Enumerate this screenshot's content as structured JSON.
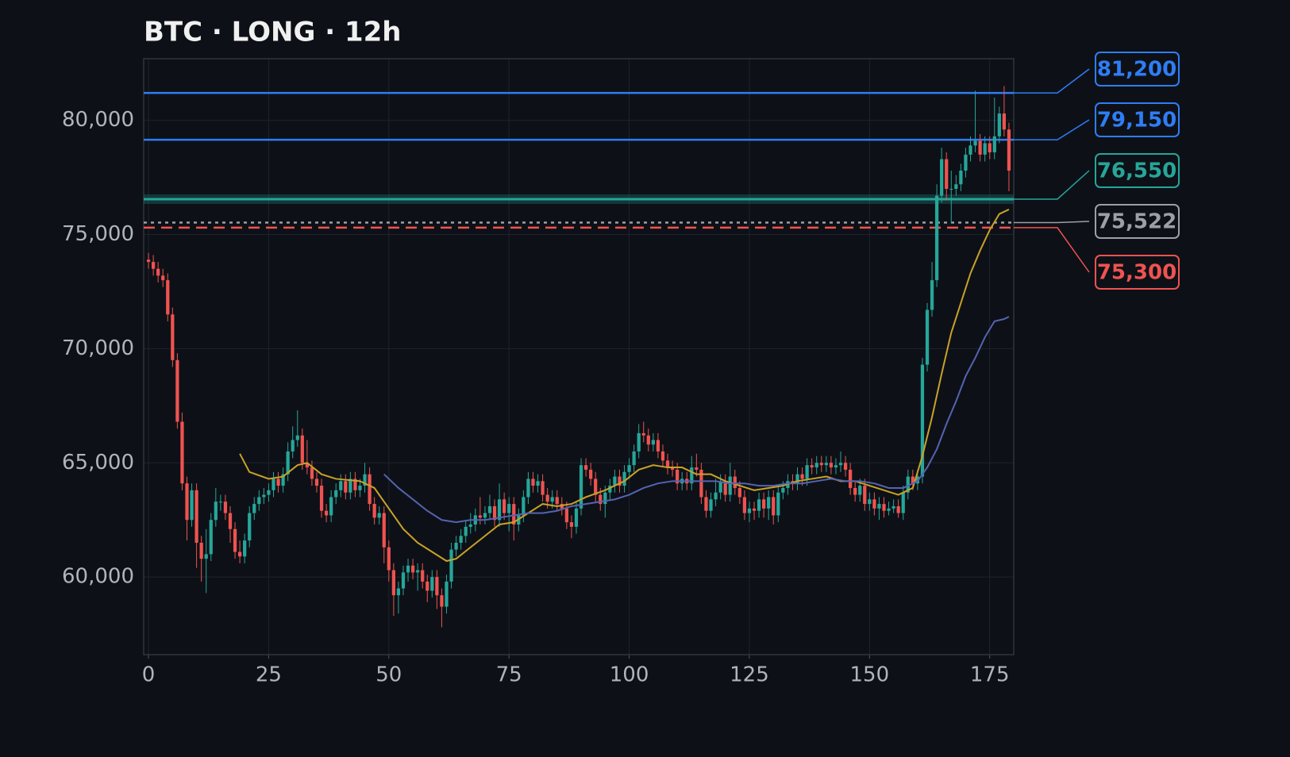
{
  "chart_data": {
    "type": "candlestick",
    "title": "BTC · LONG · 12h",
    "x": [
      0,
      1,
      2,
      3,
      4,
      5,
      6,
      7,
      8,
      9,
      10,
      11,
      12,
      13,
      14,
      15,
      16,
      17,
      18,
      19,
      20,
      21,
      22,
      23,
      24,
      25,
      26,
      27,
      28,
      29,
      30,
      31,
      32,
      33,
      34,
      35,
      36,
      37,
      38,
      39,
      40,
      41,
      42,
      43,
      44,
      45,
      46,
      47,
      48,
      49,
      50,
      51,
      52,
      53,
      54,
      55,
      56,
      57,
      58,
      59,
      60,
      61,
      62,
      63,
      64,
      65,
      66,
      67,
      68,
      69,
      70,
      71,
      72,
      73,
      74,
      75,
      76,
      77,
      78,
      79,
      80,
      81,
      82,
      83,
      84,
      85,
      86,
      87,
      88,
      89,
      90,
      91,
      92,
      93,
      94,
      95,
      96,
      97,
      98,
      99,
      100,
      101,
      102,
      103,
      104,
      105,
      106,
      107,
      108,
      109,
      110,
      111,
      112,
      113,
      114,
      115,
      116,
      117,
      118,
      119,
      120,
      121,
      122,
      123,
      124,
      125,
      126,
      127,
      128,
      129,
      130,
      131,
      132,
      133,
      134,
      135,
      136,
      137,
      138,
      139,
      140,
      141,
      142,
      143,
      144,
      145,
      146,
      147,
      148,
      149,
      150,
      151,
      152,
      153,
      154,
      155,
      156,
      157,
      158,
      159,
      160,
      161,
      162,
      163,
      164,
      165,
      166,
      167,
      168,
      169,
      170,
      171,
      172,
      173,
      174,
      175,
      176,
      177,
      178,
      179
    ],
    "open": [
      73900,
      73800,
      73500,
      73200,
      73000,
      71500,
      69500,
      66800,
      64100,
      62500,
      63800,
      61500,
      60800,
      61000,
      62500,
      63300,
      63300,
      62800,
      62100,
      61100,
      60900,
      61600,
      62800,
      63200,
      63500,
      63600,
      63800,
      64300,
      64000,
      64500,
      65500,
      66000,
      66200,
      65000,
      64800,
      64300,
      64000,
      62900,
      62700,
      63500,
      63800,
      64200,
      63700,
      64300,
      63800,
      64000,
      64500,
      63200,
      62600,
      62800,
      61300,
      60300,
      59200,
      59500,
      60200,
      60500,
      60200,
      60300,
      59800,
      59400,
      60000,
      59200,
      58700,
      59800,
      61200,
      61500,
      61800,
      62200,
      62300,
      62700,
      62600,
      62800,
      63100,
      62500,
      63400,
      62800,
      63200,
      62300,
      62700,
      63500,
      64300,
      64000,
      64200,
      63600,
      63300,
      63500,
      63200,
      63000,
      62400,
      62200,
      63000,
      64900,
      64700,
      64300,
      63600,
      63200,
      63700,
      64000,
      64400,
      64000,
      64600,
      64900,
      65500,
      66300,
      66200,
      65800,
      66000,
      65500,
      65100,
      64800,
      64700,
      64100,
      64300,
      64100,
      64800,
      64700,
      63500,
      62900,
      63400,
      63700,
      64200,
      63600,
      64400,
      63900,
      63500,
      62800,
      63000,
      62900,
      63400,
      63000,
      63500,
      62700,
      63700,
      63900,
      64200,
      64100,
      64500,
      64300,
      64900,
      64800,
      65000,
      64900,
      65000,
      64800,
      64900,
      65000,
      64700,
      63900,
      63600,
      64000,
      63200,
      63400,
      63000,
      63200,
      62900,
      63000,
      63100,
      62800,
      63700,
      64400,
      64100,
      64400,
      69300,
      71700,
      73000,
      76700,
      78300,
      77000,
      77000,
      77200,
      77800,
      78500,
      78900,
      79100,
      78500,
      79000,
      78600,
      79300,
      80300,
      79600
    ],
    "high": [
      74200,
      74100,
      73800,
      73500,
      73300,
      71800,
      69800,
      67200,
      64400,
      64100,
      64100,
      61800,
      62100,
      62800,
      63900,
      63600,
      63600,
      63100,
      62400,
      61600,
      61900,
      63100,
      63500,
      63800,
      63900,
      64100,
      64600,
      64600,
      64800,
      65900,
      66600,
      67300,
      66500,
      66000,
      65100,
      64600,
      64300,
      63200,
      63800,
      64100,
      64500,
      64500,
      64600,
      64600,
      64300,
      65000,
      64800,
      63500,
      63100,
      63100,
      61600,
      60600,
      59800,
      60500,
      60800,
      60800,
      60600,
      60600,
      60100,
      60300,
      60300,
      59500,
      60100,
      61500,
      61800,
      62100,
      62500,
      62800,
      63000,
      63500,
      63100,
      63600,
      63400,
      64100,
      63700,
      63500,
      63500,
      63000,
      63800,
      64600,
      64600,
      64500,
      64500,
      63900,
      63800,
      63800,
      63500,
      63300,
      62700,
      63300,
      65200,
      65200,
      65000,
      64600,
      63900,
      64000,
      64300,
      64700,
      64700,
      64900,
      65200,
      65800,
      66700,
      66800,
      66500,
      66300,
      66300,
      65800,
      65400,
      65100,
      65000,
      64600,
      64600,
      65300,
      65400,
      65000,
      63800,
      63700,
      64300,
      64500,
      64500,
      65000,
      64700,
      64200,
      63800,
      63300,
      63300,
      63700,
      63700,
      63800,
      63800,
      64000,
      64200,
      64500,
      64500,
      64800,
      64800,
      65200,
      65200,
      65300,
      65300,
      65300,
      65300,
      65200,
      65500,
      65300,
      65000,
      64200,
      64300,
      64300,
      63700,
      63700,
      63500,
      63500,
      63300,
      63400,
      63400,
      64000,
      64700,
      64700,
      64700,
      69600,
      72000,
      73800,
      77200,
      78800,
      78600,
      77800,
      77600,
      78100,
      78800,
      79300,
      81300,
      79400,
      79300,
      79300,
      81000,
      80600,
      81500,
      79900
    ],
    "low": [
      73500,
      73200,
      72900,
      72700,
      71200,
      69200,
      66500,
      63800,
      61600,
      62200,
      60400,
      59800,
      59300,
      60700,
      62200,
      62900,
      62500,
      61500,
      60800,
      60600,
      60600,
      61300,
      62500,
      62900,
      63200,
      63300,
      63500,
      63700,
      63700,
      64200,
      65200,
      65700,
      64700,
      64500,
      64000,
      63700,
      62600,
      62400,
      62400,
      63200,
      63500,
      63400,
      63400,
      63500,
      63500,
      63700,
      62900,
      62300,
      62300,
      60600,
      59800,
      58300,
      58400,
      59200,
      59800,
      59900,
      59400,
      59500,
      58900,
      59100,
      58600,
      57800,
      58400,
      59500,
      60900,
      61200,
      61500,
      61900,
      62000,
      62300,
      62300,
      62500,
      62200,
      62200,
      62500,
      62000,
      61600,
      62000,
      62400,
      63200,
      63700,
      63700,
      63300,
      63000,
      63000,
      62900,
      62700,
      62100,
      61700,
      61900,
      62700,
      64400,
      64000,
      63300,
      62900,
      62600,
      63400,
      63700,
      63700,
      63700,
      64300,
      64600,
      65200,
      65900,
      65500,
      65500,
      65200,
      64800,
      64500,
      64400,
      63800,
      63800,
      63800,
      63800,
      64400,
      63200,
      62600,
      62600,
      63100,
      63400,
      63300,
      63300,
      63600,
      63200,
      62500,
      62400,
      62500,
      62600,
      62600,
      62500,
      62300,
      62400,
      63400,
      63600,
      63800,
      63800,
      64000,
      64000,
      64500,
      64500,
      64600,
      64600,
      64500,
      64500,
      64600,
      64400,
      63600,
      63300,
      63300,
      62900,
      62900,
      62700,
      62500,
      62600,
      62700,
      62800,
      62600,
      62500,
      63400,
      63800,
      63800,
      64100,
      69000,
      71400,
      72700,
      76400,
      76500,
      75500,
      76700,
      76900,
      77500,
      78200,
      78600,
      78200,
      78200,
      78300,
      78300,
      79000,
      79300,
      76900
    ],
    "close": [
      73800,
      73500,
      73200,
      73000,
      71500,
      69500,
      66800,
      64100,
      62500,
      63800,
      61500,
      60800,
      61000,
      62500,
      63300,
      63300,
      62800,
      62100,
      61100,
      60900,
      61600,
      62800,
      63200,
      63500,
      63600,
      63800,
      64300,
      64000,
      64500,
      65500,
      66000,
      66200,
      65000,
      64800,
      64300,
      64000,
      62900,
      62700,
      63500,
      63800,
      64200,
      63700,
      64300,
      63800,
      64000,
      64500,
      63200,
      62600,
      62800,
      61300,
      60300,
      59200,
      59500,
      60200,
      60500,
      60200,
      60300,
      59800,
      59400,
      60000,
      59200,
      58700,
      59800,
      61200,
      61500,
      61800,
      62200,
      62300,
      62700,
      62600,
      62800,
      63100,
      62500,
      63400,
      62800,
      63200,
      62300,
      62700,
      63500,
      64300,
      64000,
      64200,
      63600,
      63300,
      63500,
      63200,
      63000,
      62400,
      62200,
      63000,
      64900,
      64700,
      64300,
      63600,
      63200,
      63700,
      64000,
      64400,
      64000,
      64600,
      64900,
      65500,
      66300,
      66200,
      65800,
      66000,
      65500,
      65100,
      64800,
      64700,
      64100,
      64300,
      64100,
      64800,
      64700,
      63500,
      62900,
      63400,
      63700,
      64200,
      63600,
      64400,
      63900,
      63500,
      62800,
      63000,
      62900,
      63400,
      63000,
      63500,
      62700,
      63700,
      63900,
      64200,
      64100,
      64500,
      64300,
      64900,
      64800,
      65000,
      64900,
      65000,
      64800,
      64900,
      65000,
      64700,
      63900,
      63600,
      64000,
      63200,
      63400,
      63000,
      63200,
      62900,
      63000,
      63100,
      62800,
      63700,
      64400,
      64100,
      64400,
      69300,
      71700,
      73000,
      76700,
      78300,
      77000,
      77000,
      77200,
      77800,
      78500,
      78900,
      79100,
      78500,
      79000,
      78600,
      79300,
      80300,
      79600,
      77800
    ],
    "up_color": "#26a69a",
    "down_color": "#ef5350",
    "lines": [
      {
        "color": "#c9a227",
        "x": [
          19,
          21,
          25,
          28,
          31,
          33,
          36,
          39,
          44,
          47,
          50,
          53,
          56,
          59,
          62,
          64,
          67,
          70,
          73,
          76,
          79,
          82,
          85,
          88,
          91,
          95,
          99,
          102,
          105,
          108,
          111,
          114,
          117,
          120,
          123,
          126,
          129,
          132,
          135,
          138,
          141,
          144,
          147,
          150,
          153,
          156,
          159,
          161,
          163,
          165,
          167,
          169,
          171,
          173,
          175,
          177,
          179
        ],
        "values": [
          65400,
          64600,
          64300,
          64400,
          64900,
          65000,
          64500,
          64300,
          64200,
          63900,
          63000,
          62100,
          61500,
          61100,
          60700,
          60800,
          61300,
          61800,
          62300,
          62400,
          62800,
          63200,
          63100,
          63200,
          63500,
          63800,
          64200,
          64700,
          64900,
          64800,
          64800,
          64500,
          64500,
          64200,
          64000,
          63800,
          63900,
          64000,
          64200,
          64300,
          64400,
          64200,
          64200,
          64000,
          63800,
          63600,
          63900,
          65300,
          67000,
          68900,
          70700,
          72000,
          73300,
          74300,
          75200,
          75900,
          76100
        ]
      },
      {
        "color": "#5563b0",
        "x": [
          49,
          52,
          55,
          58,
          61,
          64,
          67,
          70,
          73,
          76,
          79,
          82,
          85,
          88,
          91,
          94,
          97,
          100,
          103,
          106,
          109,
          112,
          115,
          118,
          121,
          124,
          127,
          130,
          133,
          136,
          139,
          142,
          145,
          148,
          151,
          154,
          157,
          160,
          162,
          164,
          166,
          168,
          170,
          172,
          174,
          176,
          178,
          179
        ],
        "values": [
          64500,
          63900,
          63400,
          62900,
          62500,
          62400,
          62500,
          62500,
          62600,
          62700,
          62800,
          62800,
          62900,
          63100,
          63200,
          63300,
          63400,
          63600,
          63900,
          64100,
          64200,
          64200,
          64200,
          64200,
          64100,
          64100,
          64000,
          64000,
          64100,
          64100,
          64200,
          64300,
          64200,
          64200,
          64100,
          63900,
          63900,
          64200,
          64800,
          65600,
          66700,
          67700,
          68800,
          69600,
          70500,
          71200,
          71300,
          71400
        ]
      }
    ],
    "levels": [
      {
        "value": 81200,
        "label": "81,200",
        "color": "#2f7df6",
        "style": "solid"
      },
      {
        "value": 79150,
        "label": "79,150",
        "color": "#2f7df6",
        "style": "solid"
      },
      {
        "value": 76550,
        "label": "76,550",
        "color": "#26a69a",
        "style": "zone"
      },
      {
        "value": 75522,
        "label": "75,522",
        "color": "#9aa0a6",
        "style": "dotted"
      },
      {
        "value": 75300,
        "label": "75,300",
        "color": "#ef5350",
        "style": "dashed"
      }
    ],
    "xlim": [
      -1,
      180
    ],
    "ylim": [
      56600,
      82700
    ],
    "xticks": [
      0,
      25,
      50,
      75,
      100,
      125,
      150,
      175
    ],
    "yticks": [
      {
        "value": 60000,
        "label": "60,000"
      },
      {
        "value": 65000,
        "label": "65,000"
      },
      {
        "value": 70000,
        "label": "70,000"
      },
      {
        "value": 75000,
        "label": "75,000"
      },
      {
        "value": 80000,
        "label": "80,000"
      }
    ],
    "grid": true
  }
}
